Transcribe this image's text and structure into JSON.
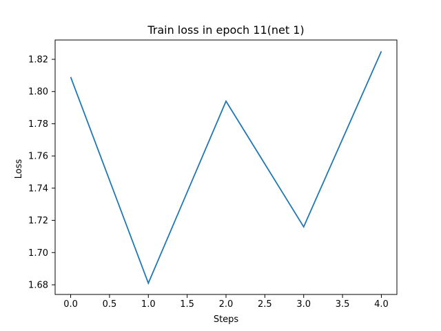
{
  "chart_data": {
    "type": "line",
    "title": "Train loss in epoch 11(net 1)",
    "xlabel": "Steps",
    "ylabel": "Loss",
    "x": [
      0,
      1,
      2,
      3,
      4
    ],
    "series": [
      {
        "values": [
          1.809,
          1.681,
          1.794,
          1.716,
          1.825
        ],
        "color": "#1f77b4"
      }
    ],
    "xlim": [
      -0.2,
      4.2
    ],
    "ylim": [
      1.674,
      1.832
    ],
    "xticks": [
      0.0,
      0.5,
      1.0,
      1.5,
      2.0,
      2.5,
      3.0,
      3.5,
      4.0
    ],
    "xtick_labels": [
      "0.0",
      "0.5",
      "1.0",
      "1.5",
      "2.0",
      "2.5",
      "3.0",
      "3.5",
      "4.0"
    ],
    "yticks": [
      1.68,
      1.7,
      1.72,
      1.74,
      1.76,
      1.78,
      1.8,
      1.82
    ],
    "ytick_labels": [
      "1.68",
      "1.70",
      "1.72",
      "1.74",
      "1.76",
      "1.78",
      "1.80",
      "1.82"
    ],
    "grid": false,
    "legend": "none"
  }
}
